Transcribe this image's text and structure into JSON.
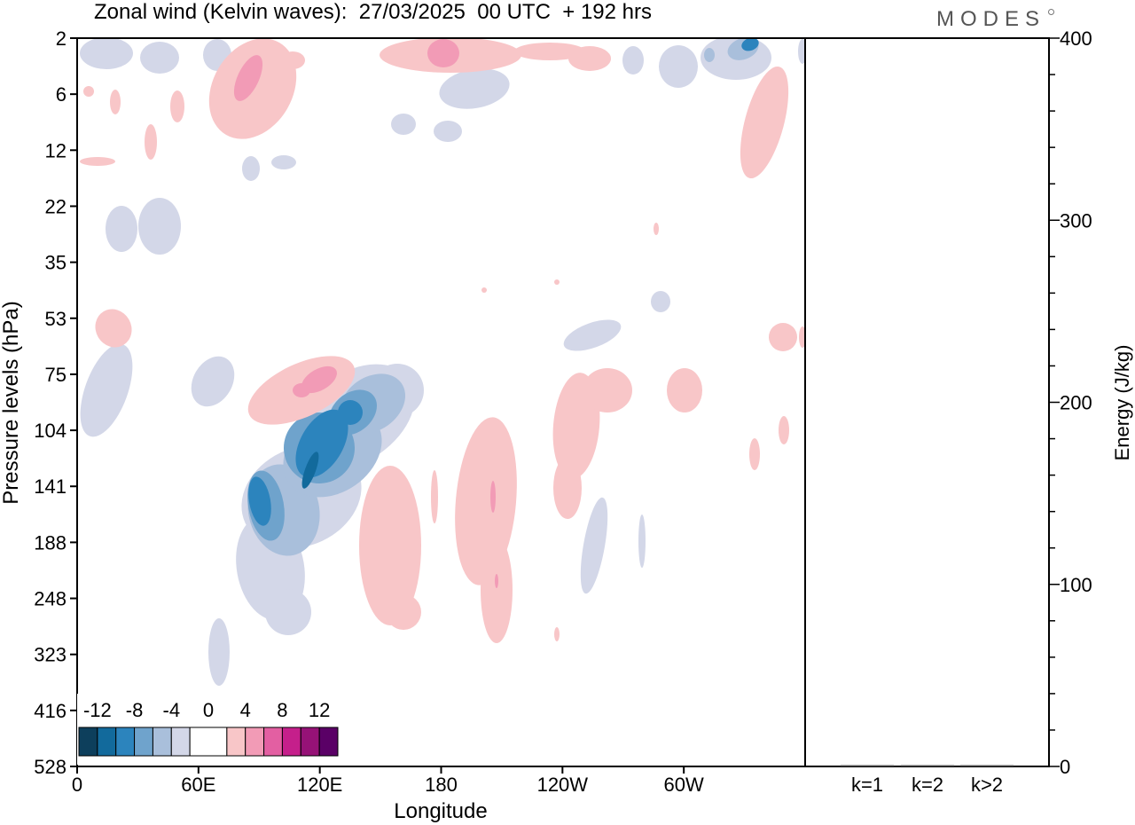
{
  "brand": {
    "logo_text": "MODES"
  },
  "colors": {
    "neg12": "#0d3f5c",
    "neg10": "#126a9c",
    "neg8": "#2c84bd",
    "neg6": "#6fa3cc",
    "neg4": "#a9bfdb",
    "neg2": "#d3d7e8",
    "zero": "#ffffff",
    "pos2": "#f8c6c8",
    "pos4": "#f29bb6",
    "pos6": "#e35fa2",
    "pos8": "#c51f8b",
    "pos10": "#961277",
    "pos12": "#5a0066"
  },
  "chart_data": [
    {
      "type": "heatmap",
      "title": "Zonal wind (Kelvin waves):  27/03/2025  00 UTC  + 192 hrs",
      "xlabel": "Longitude",
      "ylabel": "Pressure levels (hPa)",
      "x_ticks": [
        "0",
        "60E",
        "120E",
        "180",
        "120W",
        "60W"
      ],
      "y_ticks": [
        "2",
        "6",
        "12",
        "22",
        "35",
        "53",
        "75",
        "104",
        "141",
        "188",
        "248",
        "323",
        "416",
        "528"
      ],
      "y_scale": "log (pressure, inverted)",
      "colorbar": {
        "tick_labels": [
          "-12",
          "-8",
          "-4",
          "0",
          "4",
          "8",
          "12"
        ],
        "levels": [
          -14,
          -12,
          -10,
          -8,
          -6,
          -4,
          -2,
          2,
          4,
          6,
          8,
          10,
          12,
          14
        ],
        "placement": "bottom-left"
      },
      "features": [
        {
          "kind": "negative",
          "lon": 118,
          "hPa": 110,
          "min": -12
        },
        {
          "kind": "negative",
          "lon": 93,
          "hPa": 150,
          "min": -10
        },
        {
          "kind": "positive",
          "lon": 110,
          "hPa": 85,
          "max": 6
        },
        {
          "kind": "positive",
          "lon": 82,
          "hPa": 5,
          "max": 6
        },
        {
          "kind": "positive",
          "lon": 178,
          "hPa": 3,
          "max": 6
        },
        {
          "kind": "negative",
          "lon": 333,
          "hPa": 3,
          "min": -8
        },
        {
          "kind": "positive",
          "lon": 204,
          "hPa": 160,
          "max": 4
        }
      ]
    },
    {
      "type": "bar",
      "categories": [
        "k=1",
        "k=2",
        "k>2"
      ],
      "values": [
        0,
        0,
        0
      ],
      "ylabel": "Energy (J/kg)",
      "y_ticks": [
        "0",
        "100",
        "200",
        "300",
        "400"
      ],
      "ylim": [
        0,
        400
      ]
    }
  ]
}
